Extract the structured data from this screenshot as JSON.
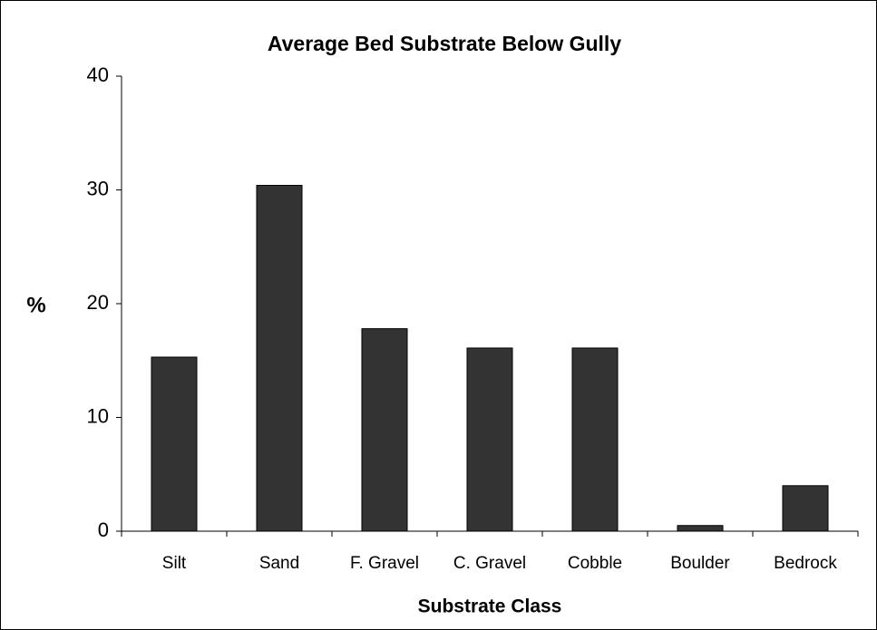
{
  "chart_data": {
    "type": "bar",
    "title": "Average Bed Substrate Below Gully",
    "x_label": "Substrate Class",
    "y_label": "%",
    "categories": [
      "Silt",
      "Sand",
      "F. Gravel",
      "C. Gravel",
      "Cobble",
      "Boulder",
      "Bedrock"
    ],
    "values": [
      15.3,
      30.4,
      17.8,
      16.1,
      16.1,
      0.5,
      4.0
    ],
    "color": "#333333",
    "ylim": [
      0,
      40
    ],
    "yticks": [
      0,
      10,
      20,
      30,
      40
    ],
    "grid": false
  }
}
